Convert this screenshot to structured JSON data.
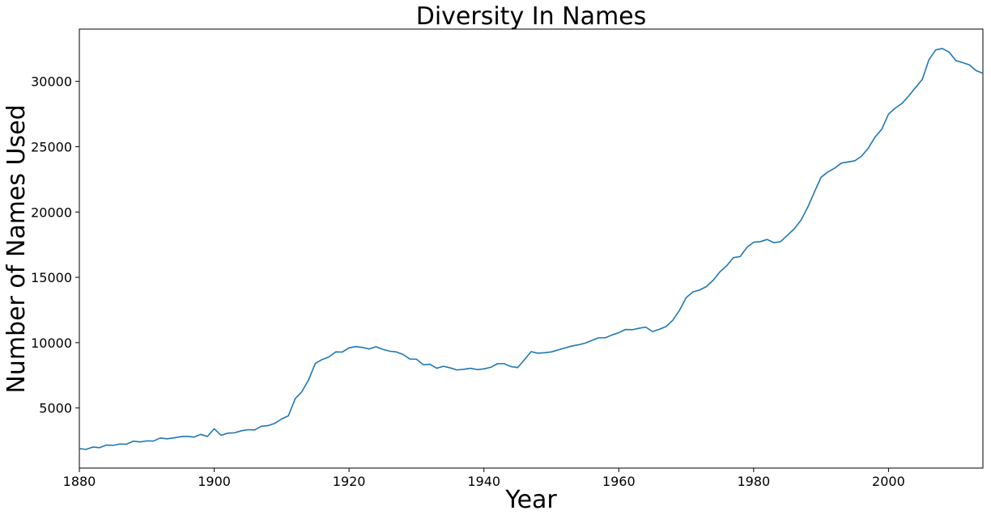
{
  "chart_data": {
    "type": "line",
    "title": "Diversity In Names",
    "xlabel": "Year",
    "ylabel": "Number of Names Used",
    "xlim": [
      1880,
      2014
    ],
    "ylim": [
      400,
      34000
    ],
    "grid": false,
    "line_color": "#1f77b4",
    "x_ticks": [
      1880,
      1900,
      1920,
      1940,
      1960,
      1980,
      2000
    ],
    "x_tick_labels": [
      "1880",
      "1900",
      "1920",
      "1940",
      "1960",
      "1980",
      "2000"
    ],
    "y_ticks": [
      5000,
      10000,
      15000,
      20000,
      25000,
      30000
    ],
    "y_tick_labels": [
      "5000",
      "10000",
      "15000",
      "20000",
      "25000",
      "30000"
    ],
    "series": [
      {
        "x": [
          1880,
          1881,
          1882,
          1883,
          1884,
          1885,
          1886,
          1887,
          1888,
          1889,
          1890,
          1891,
          1892,
          1893,
          1894,
          1895,
          1896,
          1897,
          1898,
          1899,
          1900,
          1901,
          1902,
          1903,
          1904,
          1905,
          1906,
          1907,
          1908,
          1909,
          1910,
          1911,
          1912,
          1913,
          1914,
          1915,
          1916,
          1917,
          1918,
          1919,
          1920,
          1921,
          1922,
          1923,
          1924,
          1925,
          1926,
          1927,
          1928,
          1929,
          1930,
          1931,
          1932,
          1933,
          1934,
          1935,
          1936,
          1937,
          1938,
          1939,
          1940,
          1941,
          1942,
          1943,
          1944,
          1945,
          1946,
          1947,
          1948,
          1949,
          1950,
          1951,
          1952,
          1953,
          1954,
          1955,
          1956,
          1957,
          1958,
          1959,
          1960,
          1961,
          1962,
          1963,
          1964,
          1965,
          1966,
          1967,
          1968,
          1969,
          1970,
          1971,
          1972,
          1973,
          1974,
          1975,
          1976,
          1977,
          1978,
          1979,
          1980,
          1981,
          1982,
          1983,
          1984,
          1985,
          1986,
          1987,
          1988,
          1989,
          1990,
          1991,
          1992,
          1993,
          1994,
          1995,
          1996,
          1997,
          1998,
          1999,
          2000,
          2001,
          2002,
          2003,
          2004,
          2005,
          2006,
          2007,
          2008,
          2009,
          2010,
          2011,
          2012,
          2013,
          2014
        ],
        "y": [
          1890,
          1830,
          2010,
          1960,
          2160,
          2140,
          2240,
          2230,
          2460,
          2400,
          2480,
          2470,
          2700,
          2640,
          2710,
          2800,
          2830,
          2770,
          2980,
          2820,
          3410,
          2910,
          3070,
          3100,
          3250,
          3340,
          3320,
          3600,
          3650,
          3830,
          4160,
          4400,
          5700,
          6250,
          7150,
          8420,
          8710,
          8900,
          9290,
          9280,
          9600,
          9700,
          9630,
          9520,
          9690,
          9490,
          9350,
          9290,
          9100,
          8750,
          8730,
          8310,
          8350,
          8040,
          8190,
          8070,
          7910,
          7960,
          8040,
          7940,
          7990,
          8110,
          8390,
          8390,
          8170,
          8090,
          8690,
          9310,
          9190,
          9230,
          9290,
          9440,
          9590,
          9740,
          9830,
          9960,
          10170,
          10370,
          10370,
          10590,
          10760,
          11010,
          10990,
          11100,
          11190,
          10850,
          11020,
          11230,
          11710,
          12470,
          13450,
          13880,
          14030,
          14300,
          14780,
          15420,
          15880,
          16510,
          16590,
          17290,
          17690,
          17730,
          17900,
          17650,
          17730,
          18220,
          18700,
          19360,
          20340,
          21520,
          22660,
          23060,
          23350,
          23740,
          23830,
          23920,
          24270,
          24890,
          25730,
          26330,
          27490,
          27950,
          28310,
          28880,
          29520,
          30140,
          31660,
          32410,
          32510,
          32230,
          31590,
          31430,
          31260,
          30820,
          30620
        ]
      }
    ]
  }
}
